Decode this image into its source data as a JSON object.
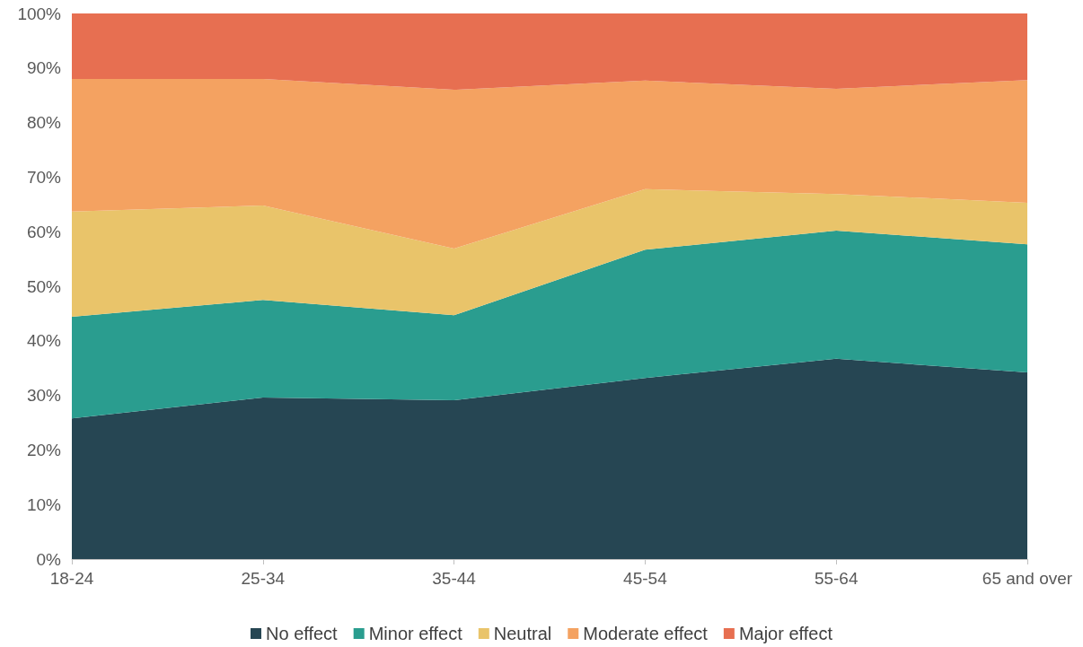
{
  "chart_data": {
    "type": "area",
    "stacked": true,
    "categories": [
      "18-24",
      "25-34",
      "35-44",
      "45-54",
      "55-64",
      "65 and over"
    ],
    "series": [
      {
        "name": "No effect",
        "color": "#264653",
        "values": [
          25.8,
          29.6,
          29.1,
          33.2,
          36.7,
          34.2
        ]
      },
      {
        "name": "Minor effect",
        "color": "#2a9d8f",
        "values": [
          18.6,
          17.9,
          15.6,
          23.5,
          23.5,
          23.5
        ]
      },
      {
        "name": "Neutral",
        "color": "#e9c46a",
        "values": [
          19.3,
          17.3,
          12.2,
          11.1,
          6.7,
          7.6
        ]
      },
      {
        "name": "Moderate effect",
        "color": "#f4a261",
        "values": [
          24.3,
          23.2,
          29.1,
          19.9,
          19.3,
          22.5
        ]
      },
      {
        "name": "Major effect",
        "color": "#e76f51",
        "values": [
          12.0,
          12.0,
          14.0,
          12.3,
          13.8,
          12.2
        ]
      }
    ],
    "ylim": [
      0,
      100
    ],
    "yticks": [
      {
        "value": 0,
        "label": "0%"
      },
      {
        "value": 10,
        "label": "10%"
      },
      {
        "value": 20,
        "label": "20%"
      },
      {
        "value": 30,
        "label": "30%"
      },
      {
        "value": 40,
        "label": "40%"
      },
      {
        "value": 50,
        "label": "50%"
      },
      {
        "value": 60,
        "label": "60%"
      },
      {
        "value": 70,
        "label": "70%"
      },
      {
        "value": 80,
        "label": "80%"
      },
      {
        "value": 90,
        "label": "90%"
      },
      {
        "value": 100,
        "label": "100%"
      }
    ],
    "grid": false,
    "legend": "bottom",
    "marker": "none"
  }
}
